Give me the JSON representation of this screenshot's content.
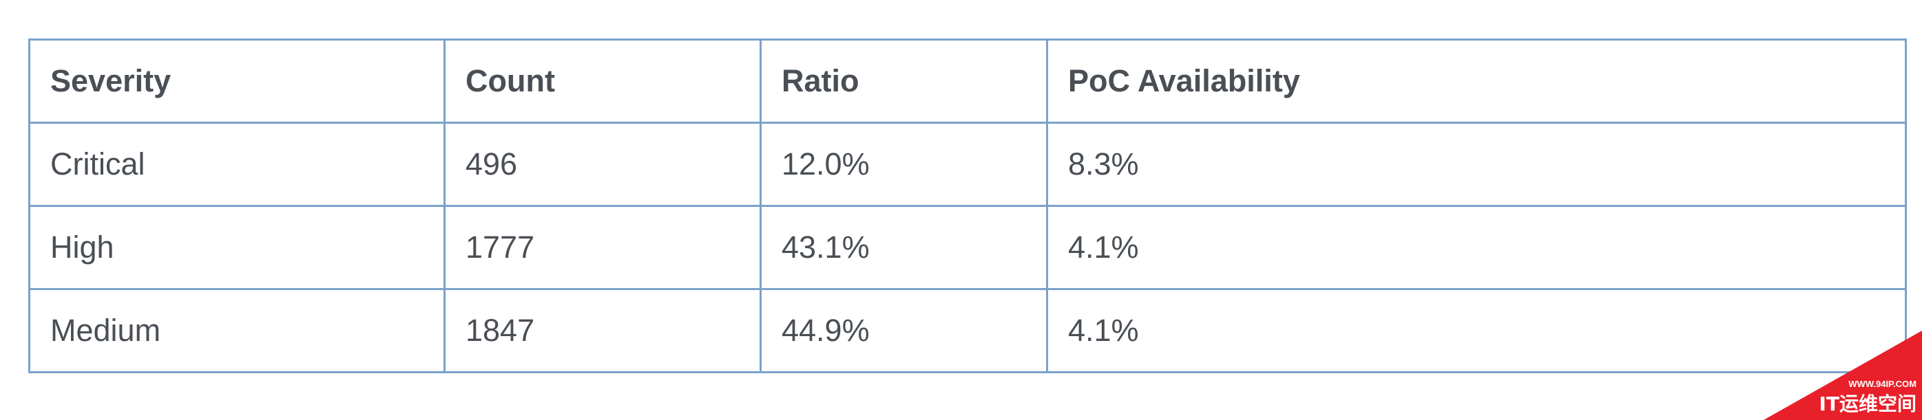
{
  "table": {
    "headers": [
      "Severity",
      "Count",
      "Ratio",
      "PoC Availability"
    ],
    "rows": [
      [
        "Critical",
        "496",
        "12.0%",
        "8.3%"
      ],
      [
        "High",
        "1777",
        "43.1%",
        "4.1%"
      ],
      [
        "Medium",
        "1847",
        "44.9%",
        "4.1%"
      ]
    ]
  },
  "watermark": {
    "site": "WWW.94IP.COM",
    "brand": "IT运维空间",
    "color": "#e8202a"
  }
}
